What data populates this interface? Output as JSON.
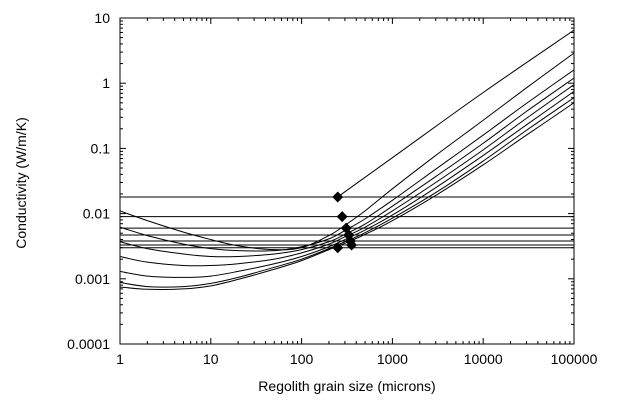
{
  "chart_data": {
    "type": "line",
    "title": "",
    "xlabel": "Regolith grain size (microns)",
    "ylabel": "Conductivity (W/m/K)",
    "x_scale": "log",
    "y_scale": "log",
    "xlim": [
      1,
      100000
    ],
    "ylim": [
      0.0001,
      10
    ],
    "grid": false,
    "legend": "none",
    "x_ticks": [
      {
        "value": 1,
        "label": "1"
      },
      {
        "value": 10,
        "label": "10"
      },
      {
        "value": 100,
        "label": "100"
      },
      {
        "value": 1000,
        "label": "1000"
      },
      {
        "value": 10000,
        "label": "10000"
      },
      {
        "value": 100000,
        "label": "100000"
      }
    ],
    "y_ticks": [
      {
        "value": 10,
        "label": "10"
      },
      {
        "value": 1,
        "label": "1"
      },
      {
        "value": 0.1,
        "label": "0.1"
      },
      {
        "value": 0.01,
        "label": "0.01"
      },
      {
        "value": 0.001,
        "label": "0.001"
      },
      {
        "value": 0.0001,
        "label": "0.0001"
      }
    ],
    "horizontal_lines": [
      0.018,
      0.009,
      0.006,
      0.0047,
      0.0038,
      0.0033,
      0.003
    ],
    "curves": [
      {
        "x": [
          1,
          2,
          5,
          10,
          20,
          50,
          100,
          200,
          300,
          500,
          1000,
          3000,
          10000,
          30000,
          100000
        ],
        "y": [
          0.011,
          0.0078,
          0.0052,
          0.004,
          0.0032,
          0.0028,
          0.003,
          0.0046,
          0.0066,
          0.011,
          0.024,
          0.078,
          0.27,
          0.85,
          2.9
        ]
      },
      {
        "x": [
          1,
          2,
          5,
          10,
          20,
          50,
          100,
          200,
          300,
          500,
          1000,
          3000,
          10000,
          30000,
          100000
        ],
        "y": [
          0.0062,
          0.0046,
          0.0034,
          0.0029,
          0.0027,
          0.0027,
          0.0031,
          0.0041,
          0.0055,
          0.0083,
          0.016,
          0.048,
          0.16,
          0.49,
          1.6
        ]
      },
      {
        "x": [
          1,
          2,
          5,
          10,
          20,
          50,
          100,
          200,
          300,
          500,
          1000,
          3000,
          10000,
          30000,
          100000
        ],
        "y": [
          0.0037,
          0.0029,
          0.0024,
          0.0022,
          0.0022,
          0.0024,
          0.0028,
          0.0037,
          0.0048,
          0.0069,
          0.013,
          0.037,
          0.12,
          0.37,
          1.2
        ]
      },
      {
        "x": [
          1,
          2,
          5,
          10,
          20,
          50,
          100,
          200,
          300,
          500,
          1000,
          3000,
          10000,
          30000,
          100000
        ],
        "y": [
          0.0022,
          0.0018,
          0.0016,
          0.0016,
          0.0017,
          0.002,
          0.0025,
          0.0034,
          0.0044,
          0.0062,
          0.011,
          0.03,
          0.095,
          0.29,
          0.95
        ]
      },
      {
        "x": [
          1,
          2,
          5,
          10,
          20,
          50,
          100,
          200,
          300,
          500,
          1000,
          3000,
          10000,
          30000,
          100000
        ],
        "y": [
          0.0013,
          0.0011,
          0.00105,
          0.0011,
          0.0013,
          0.0017,
          0.0022,
          0.0031,
          0.004,
          0.0056,
          0.0095,
          0.025,
          0.078,
          0.23,
          0.75
        ]
      },
      {
        "x": [
          1,
          2,
          5,
          10,
          20,
          50,
          100,
          200,
          300,
          500,
          1000,
          3000,
          10000,
          30000,
          100000
        ],
        "y": [
          0.00088,
          0.00076,
          0.00076,
          0.00085,
          0.00105,
          0.0015,
          0.002,
          0.0029,
          0.0037,
          0.0051,
          0.0085,
          0.021,
          0.064,
          0.19,
          0.6
        ]
      },
      {
        "x": [
          1,
          2,
          5,
          10,
          20,
          50,
          100,
          200,
          300,
          500,
          1000,
          3000,
          10000,
          30000,
          100000
        ],
        "y": [
          0.00075,
          0.00069,
          0.0007,
          0.00078,
          0.00098,
          0.0014,
          0.0019,
          0.0028,
          0.0035,
          0.0048,
          0.0078,
          0.019,
          0.056,
          0.16,
          0.5
        ]
      },
      {
        "x": [
          250,
          1000,
          10000,
          100000
        ],
        "y": [
          0.018,
          0.072,
          0.72,
          6.5
        ]
      }
    ],
    "markers": {
      "shape": "diamond",
      "x": [
        250,
        280,
        310,
        330,
        345,
        355,
        250
      ],
      "y": [
        0.018,
        0.009,
        0.006,
        0.0047,
        0.0038,
        0.0033,
        0.003
      ]
    }
  }
}
